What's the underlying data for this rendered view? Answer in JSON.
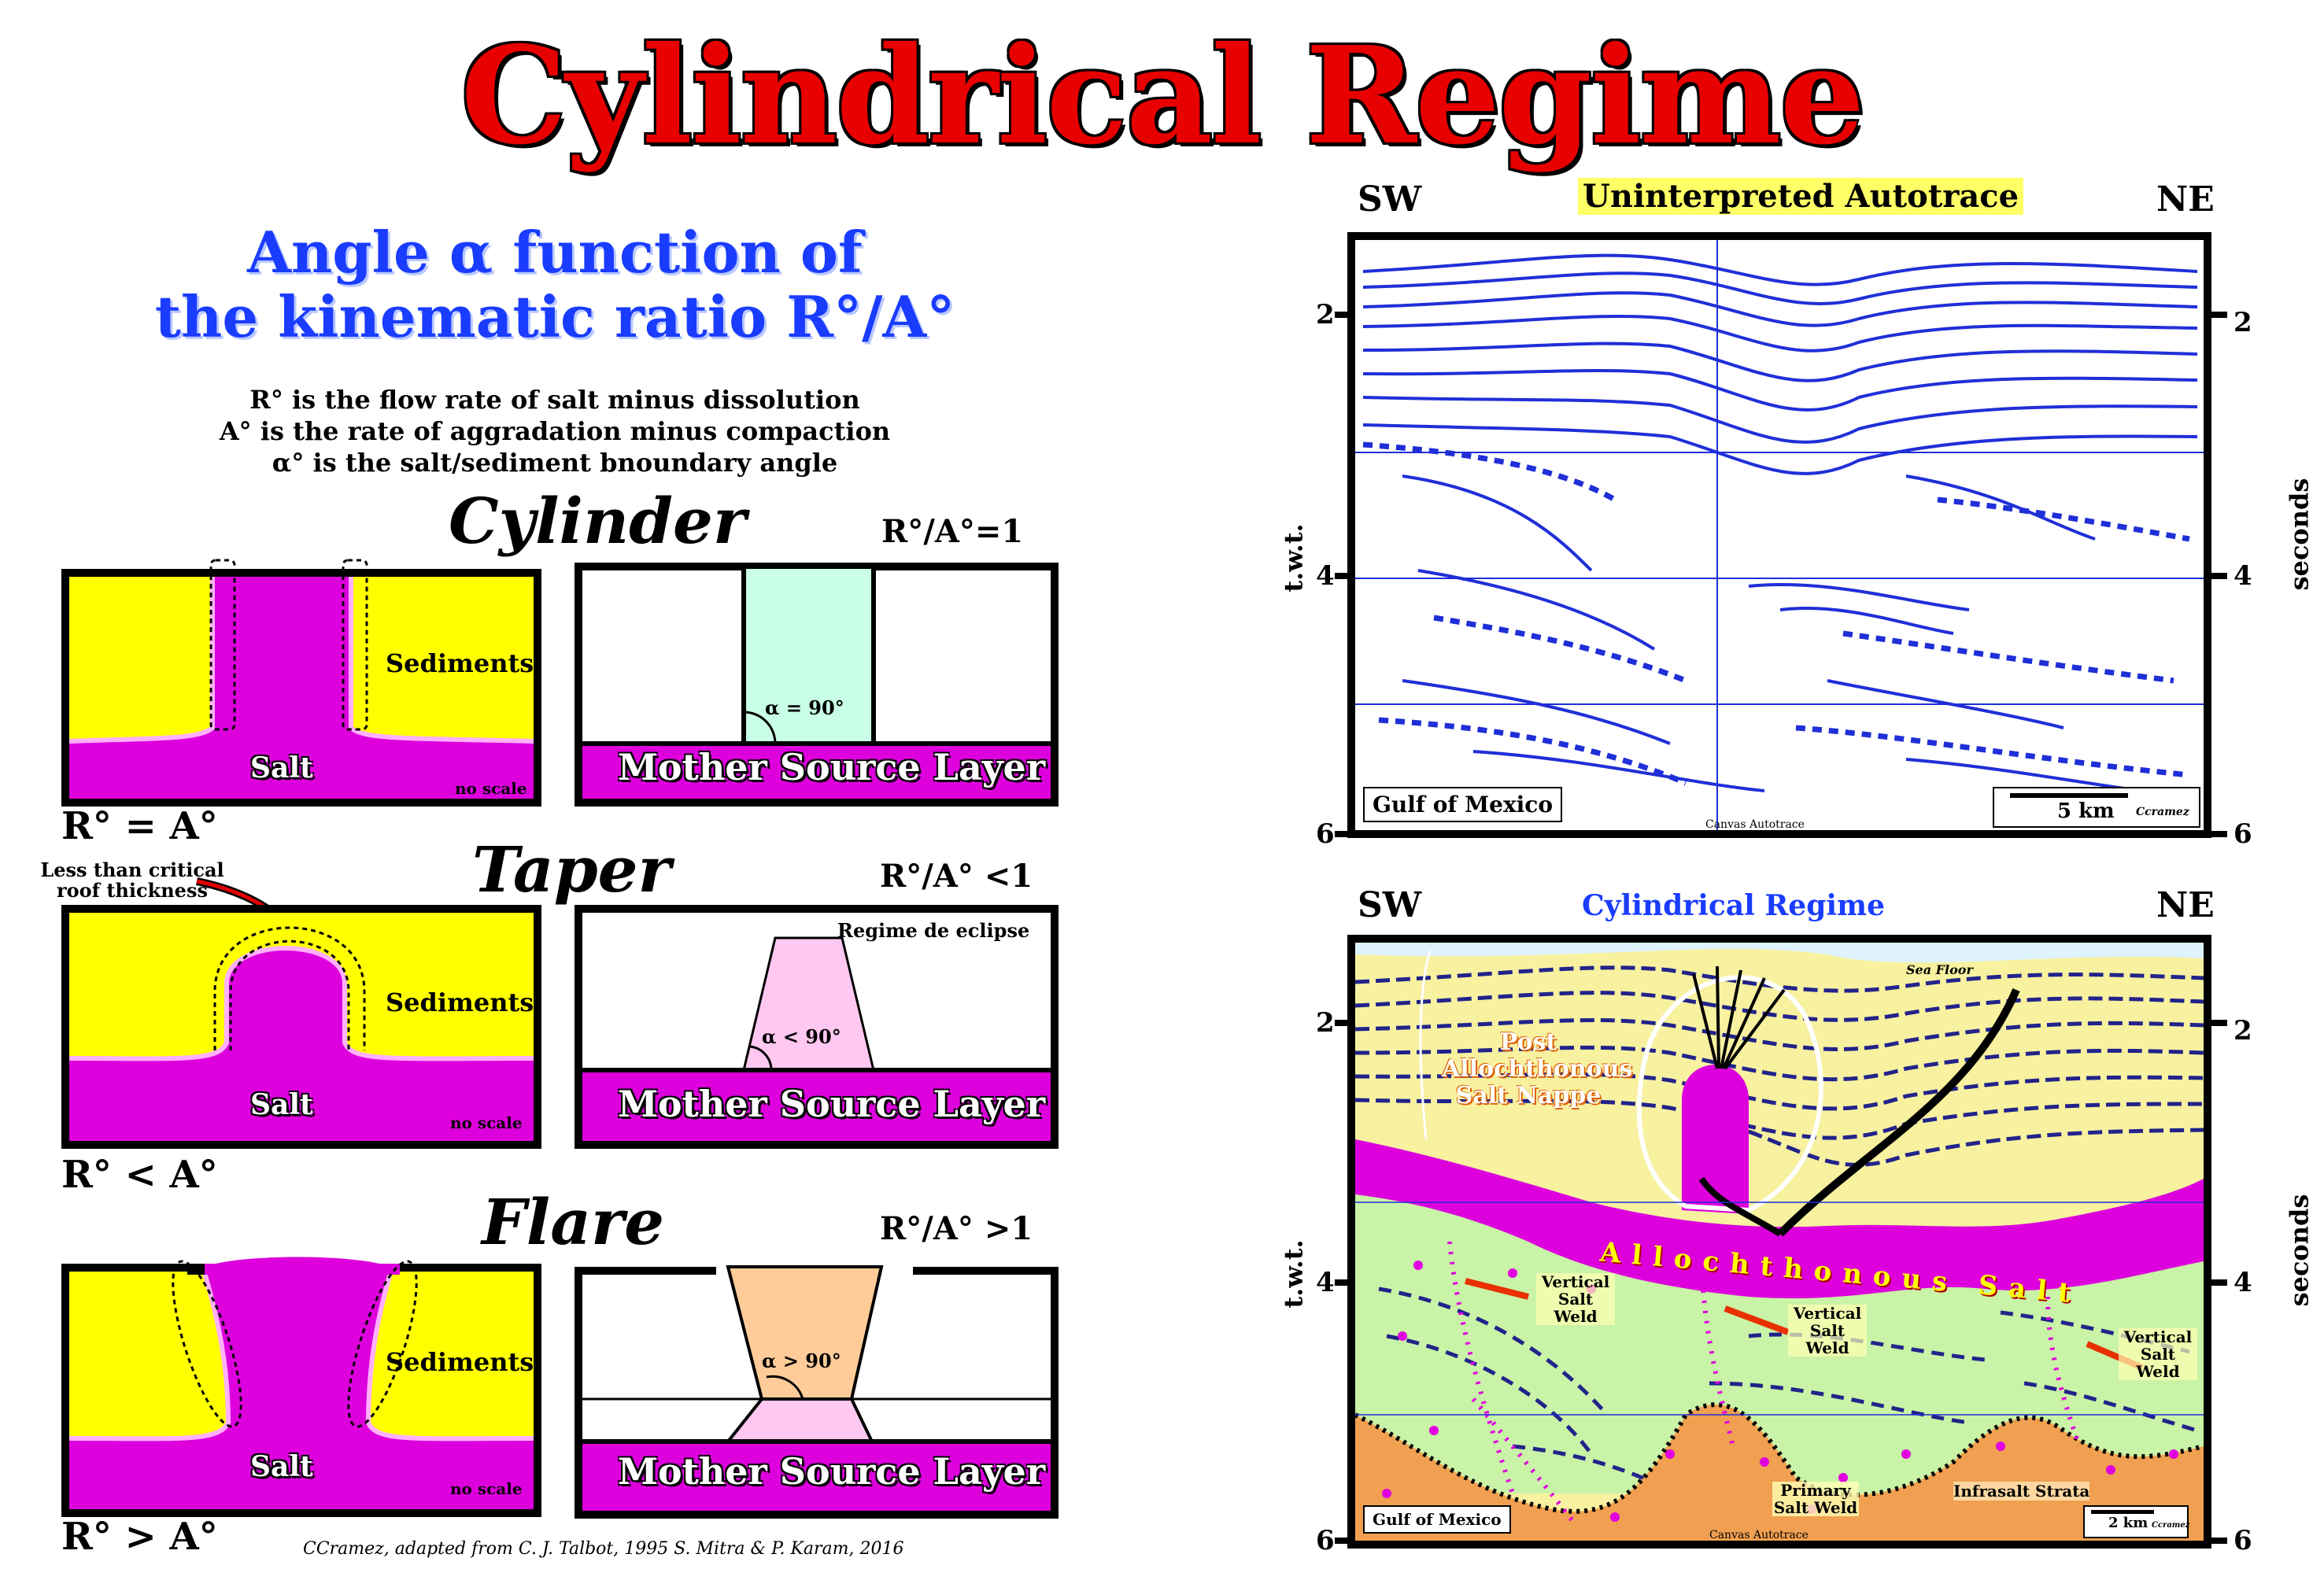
{
  "title": "Cylindrical Regime",
  "subtitle": {
    "line1": "Angle α function of",
    "line2": "the kinematic ratio R°/A°"
  },
  "definitions": [
    "R° is the flow rate of salt minus dissolution",
    "A° is the rate of aggradation minus compaction",
    "α° is the salt/sediment  bnoundary angle"
  ],
  "regimes": [
    {
      "name": "Cylinder",
      "ratio": "R°/A°=1",
      "relation": "R° = A°",
      "angle": "α = 90°"
    },
    {
      "name": "Taper",
      "ratio": "R°/A° <1",
      "relation": "R° < A°",
      "angle": "α < 90°",
      "callout": "Less than critical roof thickness",
      "extra": "Regime de eclipse"
    },
    {
      "name": "Flare",
      "ratio": "R°/A° >1",
      "relation": "R° > A°",
      "angle": "α > 90°"
    }
  ],
  "labels": {
    "sediments": "Sediments",
    "salt": "Salt",
    "no_scale": "no scale",
    "mother_source": "Mother Source Layer"
  },
  "credit": "CCramez, adapted from C. J. Talbot, 1995 S. Mitra & P. Karam, 2016",
  "seismic_top": {
    "title": "Uninterpreted Autotrace",
    "left": "SW",
    "right": "NE",
    "ticks": [
      "2",
      "4",
      "6"
    ],
    "y_left": "t.w.t.",
    "y_right": "seconds",
    "location": "Gulf of Mexico",
    "scale": "5 km",
    "scale_credit": "Ccramez",
    "footer": "Canvas Autotrace"
  },
  "seismic_bottom": {
    "title": "Cylindrical Regime",
    "left": "SW",
    "right": "NE",
    "ticks": [
      "2",
      "4",
      "6"
    ],
    "y_left": "t.w.t.",
    "y_right": "seconds",
    "location": "Gulf of Mexico",
    "scale": "2 km",
    "scale_credit": "Ccramez",
    "footer": "Canvas Autotrace",
    "annotations": {
      "sea_floor": "Sea Floor",
      "post_nappe": "Post Allochthonous Salt Nappe",
      "allochthonous": "Allochthonous Salt",
      "weld1": "Vertical Salt Weld",
      "weld2": "Vertical Salt Weld",
      "weld3": "Vertical Salt Weld",
      "primary_weld": "Primary Salt Weld",
      "infrasalt": "Infrasalt Strata"
    }
  },
  "colors": {
    "title_red": "#e80000",
    "subtitle_blue": "#1a3cff",
    "sediment_yellow": "#ffff00",
    "salt_magenta": "#dd00dd",
    "seismic_blue": "#1f2fd8",
    "interp_yellow": "#f7f1a0",
    "interp_green": "#c9f3a6",
    "interp_orange": "#f0a050",
    "cylinder_green": "#c8ffe6",
    "taper_pink": "#ffc8f0",
    "flare_orange": "#ffcc99"
  }
}
